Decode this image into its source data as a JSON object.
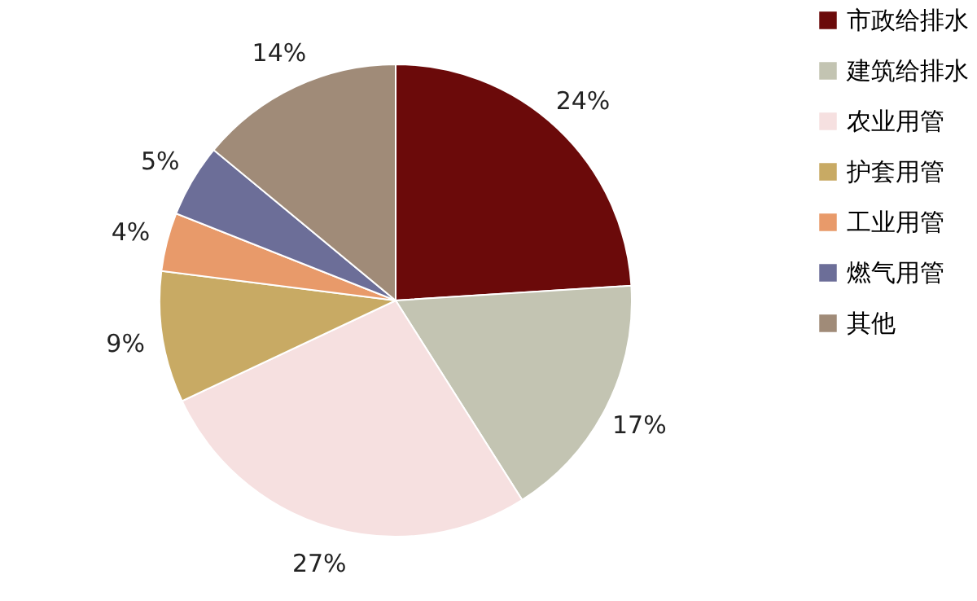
{
  "chart_data": {
    "type": "pie",
    "categories": [
      "市政给排水",
      "建筑给排水",
      "农业用管",
      "护套用管",
      "工业用管",
      "燃气用管",
      "其他"
    ],
    "values": [
      24,
      17,
      27,
      9,
      4,
      5,
      14
    ],
    "colors": [
      "#6b0a0a",
      "#c3c4b2",
      "#f6e0e0",
      "#c8aa64",
      "#e89a6a",
      "#6c6e98",
      "#a08b78"
    ],
    "value_labels": [
      "24%",
      "17%",
      "27%",
      "9%",
      "4%",
      "5%",
      "14%"
    ],
    "legend": "right"
  }
}
